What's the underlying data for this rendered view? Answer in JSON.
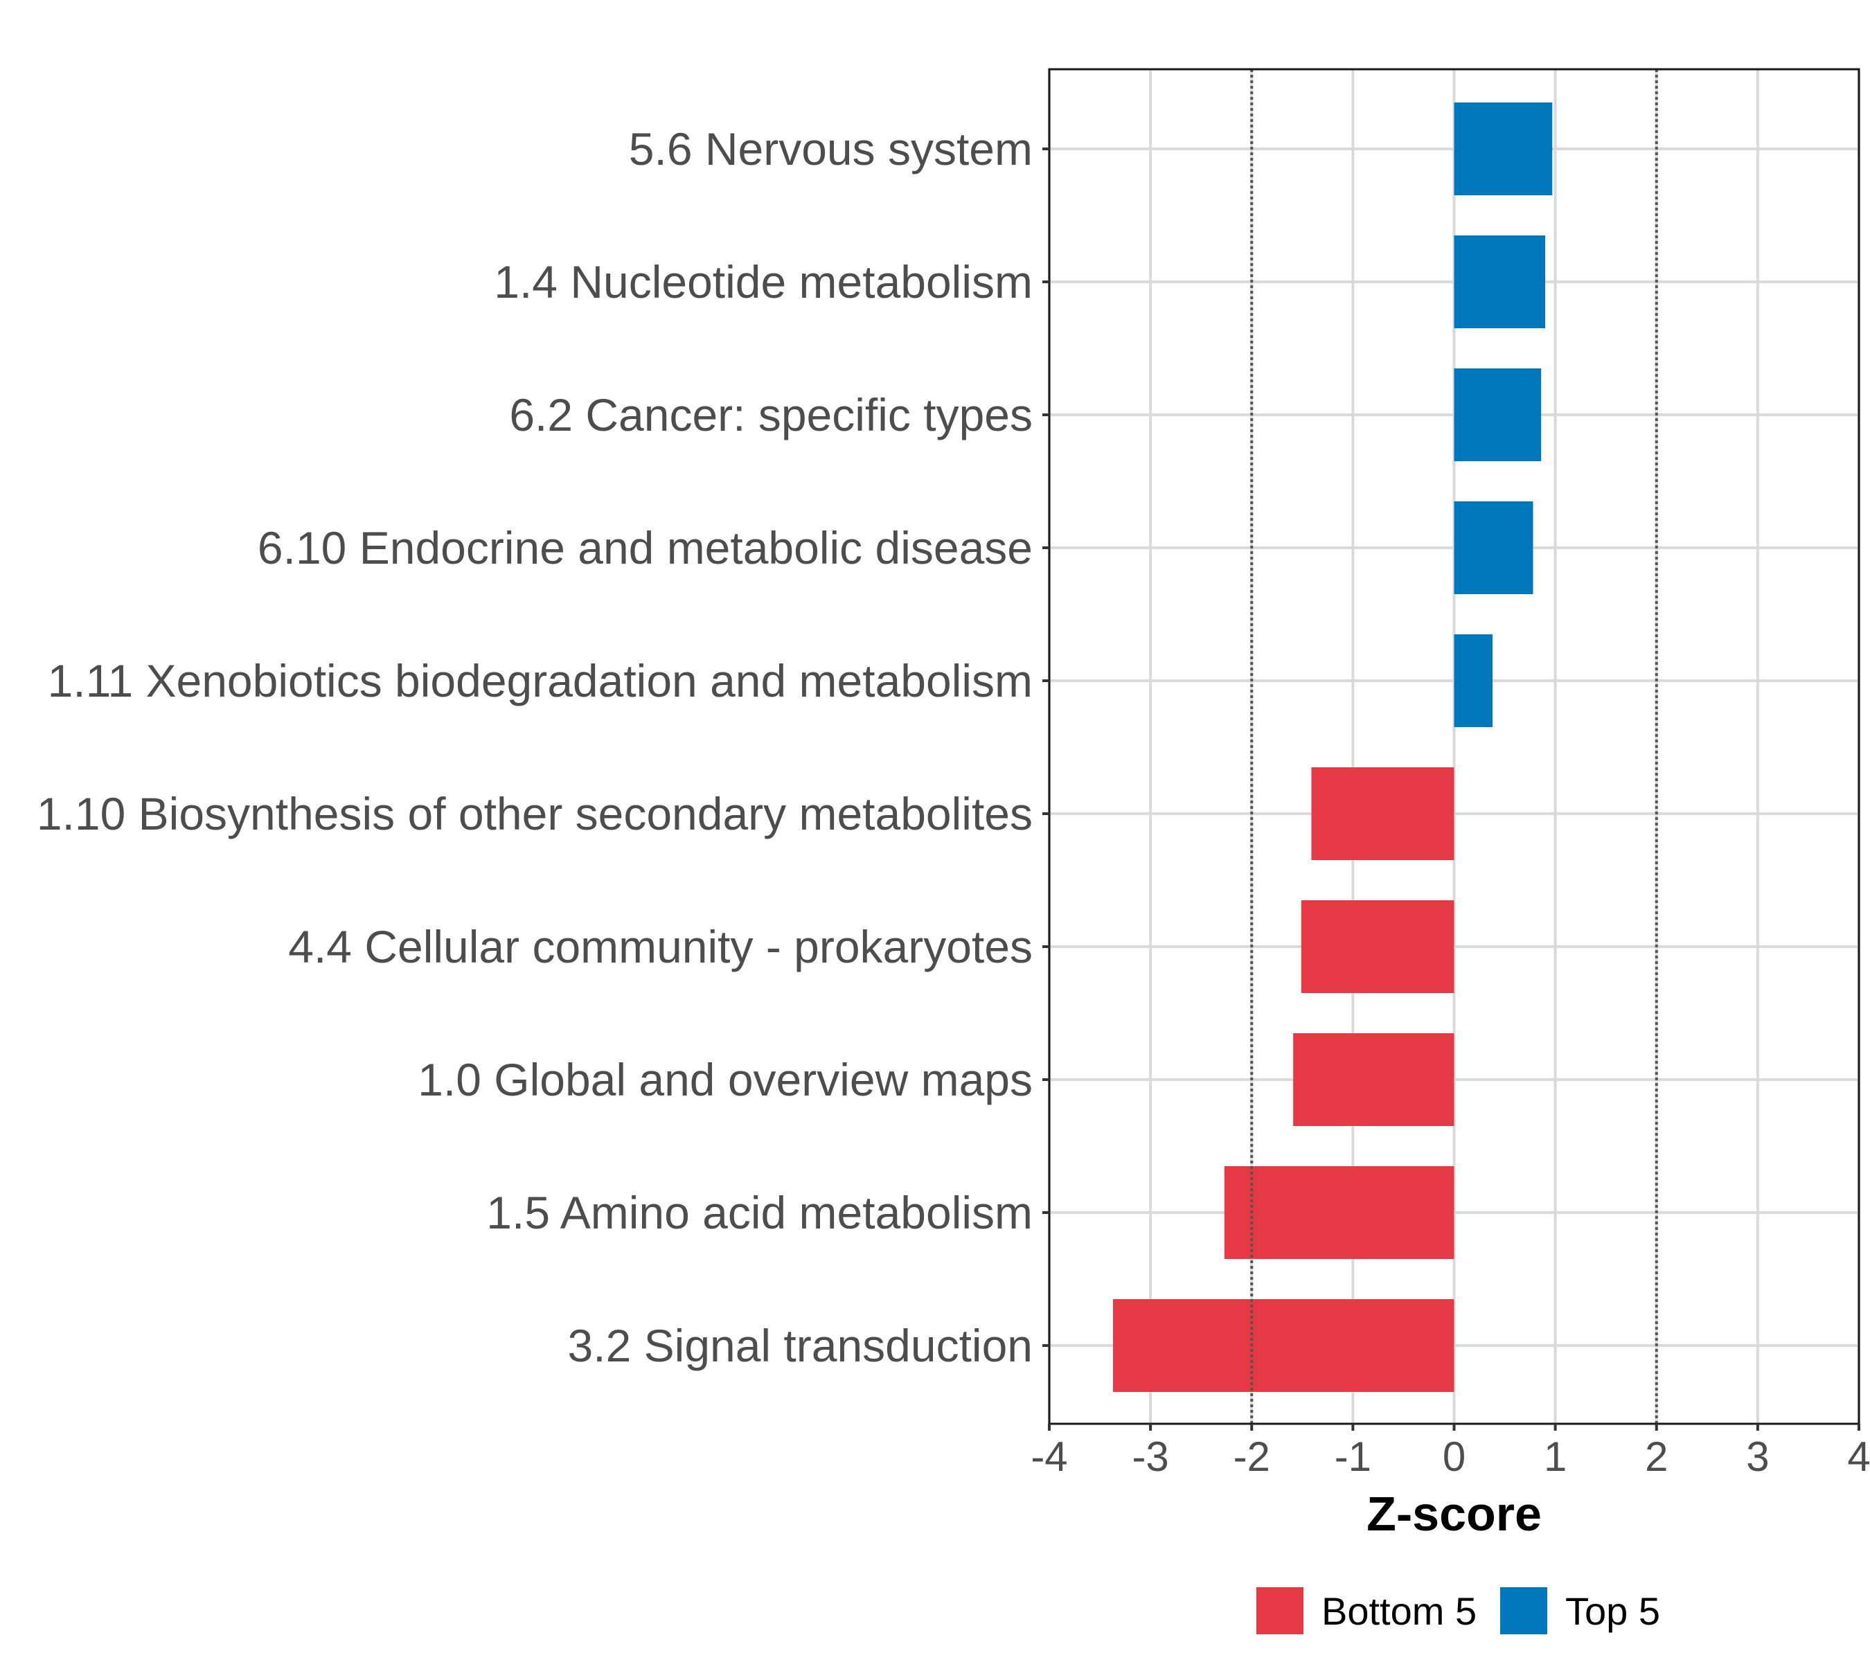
{
  "chart_data": {
    "type": "bar",
    "orientation": "horizontal",
    "categories": [
      "5.6 Nervous system",
      "1.4 Nucleotide metabolism",
      "6.2 Cancer: specific types",
      "6.10 Endocrine and metabolic disease",
      "1.11 Xenobiotics biodegradation and metabolism",
      "1.10 Biosynthesis of other secondary metabolites",
      "4.4 Cellular community - prokaryotes",
      "1.0 Global and overview maps",
      "1.5 Amino acid metabolism",
      "3.2 Signal transduction"
    ],
    "values": [
      0.97,
      0.9,
      0.86,
      0.78,
      0.38,
      -1.41,
      -1.51,
      -1.59,
      -2.27,
      -3.37
    ],
    "groups": [
      "Top 5",
      "Top 5",
      "Top 5",
      "Top 5",
      "Top 5",
      "Bottom 5",
      "Bottom 5",
      "Bottom 5",
      "Bottom 5",
      "Bottom 5"
    ],
    "title": "",
    "xlabel": "Z-score",
    "ylabel": "",
    "xlim": [
      -4,
      4
    ],
    "xticks": [
      "-4",
      "-3",
      "-2",
      "-1",
      "0",
      "1",
      "2",
      "3",
      "4"
    ],
    "reference_lines": [
      -2,
      2
    ],
    "legend": {
      "position": "bottom",
      "items": [
        {
          "label": "Bottom 5",
          "color": "#E63946"
        },
        {
          "label": "Top 5",
          "color": "#0077BB"
        }
      ]
    },
    "colors": {
      "Top 5": "#0077BB",
      "Bottom 5": "#E63946"
    }
  }
}
